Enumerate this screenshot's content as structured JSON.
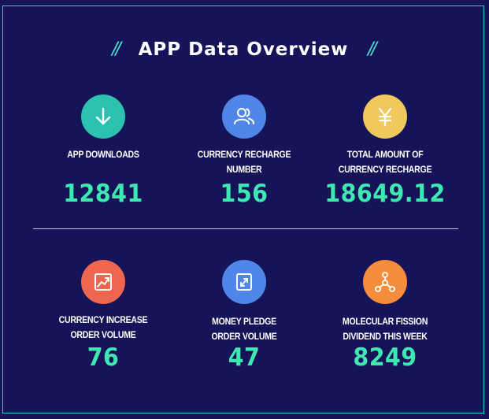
{
  "header": {
    "title": "APP Data Overview",
    "deco_left": "//",
    "deco_right": "//"
  },
  "colors": {
    "background": "#151459",
    "border": "#2bd6c4",
    "value": "#3ee8b0",
    "teal": "#2dc2b0",
    "blue": "#4f86e8",
    "yellow": "#f0c85c",
    "red": "#ee6650",
    "blue2": "#4f86e8",
    "orange": "#f58d3c"
  },
  "stats": [
    {
      "label": "APP DOWNLOADS",
      "value": "12841",
      "icon": "download-arrow-icon",
      "color": "#2dc2b0"
    },
    {
      "label": "CURRENCY RECHARGE NUMBER",
      "value": "156",
      "icon": "users-icon",
      "color": "#4f86e8"
    },
    {
      "label": "TOTAL AMOUNT OF CURRENCY RECHARGE",
      "value": "18649.12",
      "icon": "yen-icon",
      "color": "#f0c85c"
    },
    {
      "label": "CURRENCY INCREASE ORDER VOLUME",
      "value": "76",
      "icon": "trend-chart-icon",
      "color": "#ee6650"
    },
    {
      "label": "MONEY PLEDGE ORDER VOLUME",
      "value": "47",
      "icon": "exchange-icon",
      "color": "#4f86e8"
    },
    {
      "label": "MOLECULAR FISSION DIVIDEND THIS WEEK",
      "value": "8249",
      "icon": "molecule-icon",
      "color": "#f58d3c"
    }
  ],
  "label_lines": {
    "s0": [
      "APP DOWNLOADS"
    ],
    "s1": [
      "CURRENCY RECHARGE",
      "NUMBER"
    ],
    "s2": [
      "TOTAL AMOUNT OF",
      "CURRENCY RECHARGE"
    ],
    "s3": [
      "CURRENCY INCREASE",
      "ORDER VOLUME"
    ],
    "s4": [
      "MONEY PLEDGE",
      "ORDER VOLUME"
    ],
    "s5": [
      "MOLECULAR FISSION",
      "DIVIDEND THIS WEEK"
    ]
  }
}
